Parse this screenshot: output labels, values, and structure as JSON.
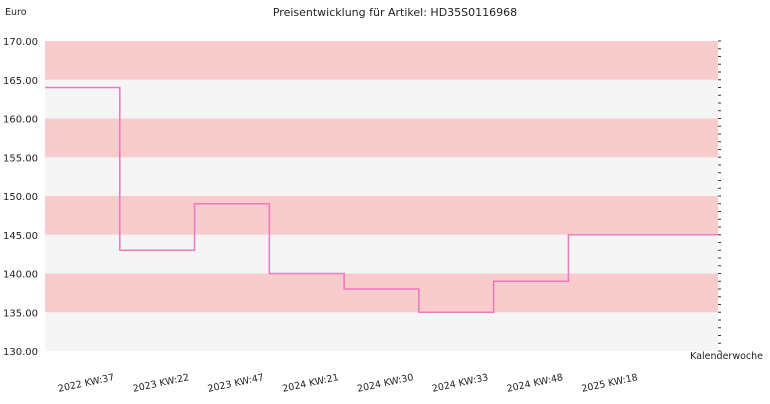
{
  "chart_data": {
    "type": "line",
    "subtype": "step",
    "title": "Preisentwicklung für Artikel: HD35S0116968",
    "ylabel": "Euro",
    "xlabel": "Kalenderwoche",
    "ylim": [
      130,
      170
    ],
    "y_ticks": [
      "130.00",
      "135.00",
      "140.00",
      "145.00",
      "150.00",
      "155.00",
      "160.00",
      "165.00",
      "170.00"
    ],
    "categories": [
      "2022 KW:37",
      "2023 KW:22",
      "2023 KW:47",
      "2024 KW:21",
      "2024 KW:30",
      "2024 KW:33",
      "2024 KW:48",
      "2025 KW:18"
    ],
    "series": [
      {
        "values": [
          164,
          143,
          149,
          140,
          138,
          135,
          139,
          145
        ]
      }
    ],
    "band_colors": [
      "#f5f5f5",
      "#f8cccc"
    ],
    "line_color": "#f07ac0",
    "grid": false,
    "legend": "none"
  }
}
